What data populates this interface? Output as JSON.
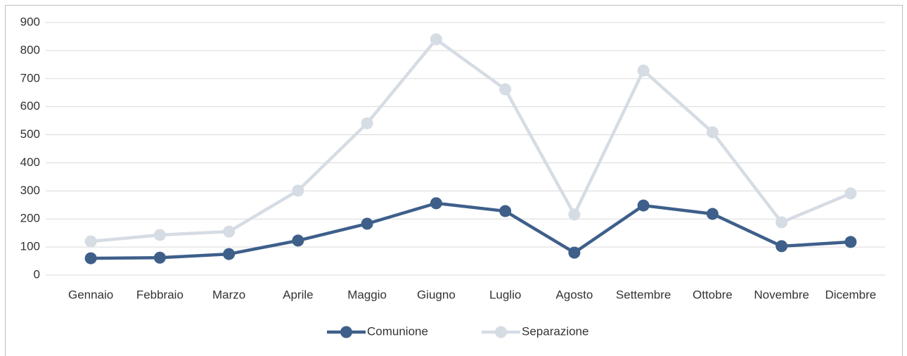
{
  "chart_data": {
    "type": "line",
    "categories": [
      "Gennaio",
      "Febbraio",
      "Marzo",
      "Aprile",
      "Maggio",
      "Giugno",
      "Luglio",
      "Agosto",
      "Settembre",
      "Ottobre",
      "Novembre",
      "Dicembre"
    ],
    "series": [
      {
        "name": "Comunione",
        "color": "#3e5f8a",
        "values": [
          60,
          62,
          75,
          123,
          183,
          256,
          228,
          80,
          248,
          218,
          103,
          118
        ]
      },
      {
        "name": "Separazione",
        "color": "#d6dce4",
        "values": [
          120,
          143,
          155,
          301,
          541,
          840,
          662,
          216,
          729,
          509,
          188,
          291
        ]
      }
    ],
    "ylim": [
      0,
      900
    ],
    "yticks": [
      0,
      100,
      200,
      300,
      400,
      500,
      600,
      700,
      800,
      900
    ],
    "grid": true,
    "legend": "bottom"
  }
}
